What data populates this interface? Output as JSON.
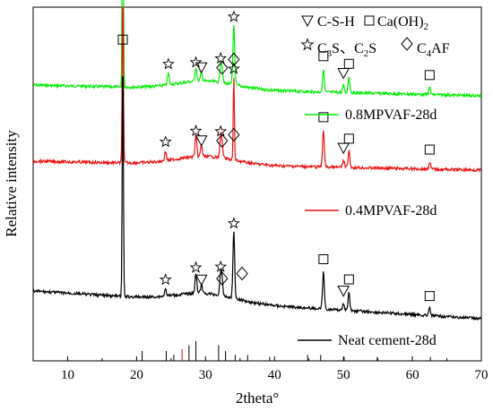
{
  "chart_data": {
    "type": "line",
    "xlabel": "2theta°",
    "ylabel": "Relative intensity",
    "xlim": [
      5,
      70
    ],
    "x_ticks": [
      10,
      20,
      30,
      40,
      50,
      60,
      70
    ],
    "grid": false,
    "legend": {
      "phase_labels": [
        {
          "symbol": "triangle-down",
          "text": "C-S-H"
        },
        {
          "symbol": "square",
          "text": "Ca(OH)2"
        },
        {
          "symbol": "star",
          "text": "C3S、C2S"
        },
        {
          "symbol": "diamond",
          "text": "C4AF"
        }
      ]
    },
    "series": [
      {
        "name": "0.8MPVAF-28d",
        "color": "#00ee00",
        "peaks": [
          {
            "x": 18.0,
            "phase": "square",
            "height": 10.5
          },
          {
            "x": 24.6,
            "phase": "star",
            "height": 0.5
          },
          {
            "x": 28.6,
            "phase": "star",
            "height": 0.6
          },
          {
            "x": 29.4,
            "phase": "triangle-down",
            "height": 0.4
          },
          {
            "x": 32.2,
            "phase": "star",
            "height": 0.8
          },
          {
            "x": 32.4,
            "phase": "diamond",
            "height": 0.4
          },
          {
            "x": 34.1,
            "phase": "star",
            "height": 2.6
          },
          {
            "x": 34.1,
            "phase": "diamond",
            "height": 0
          },
          {
            "x": 47.1,
            "phase": "square",
            "height": 1.0
          },
          {
            "x": 50.0,
            "phase": "triangle-down",
            "height": 0.3
          },
          {
            "x": 50.8,
            "phase": "square",
            "height": 0.7
          },
          {
            "x": 62.5,
            "phase": "square",
            "height": 0.3
          }
        ]
      },
      {
        "name": "0.4MPVAF-28d",
        "color": "#ee1111",
        "peaks": [
          {
            "x": 18.0,
            "phase": "square",
            "height": 7.5
          },
          {
            "x": 24.2,
            "phase": "star",
            "height": 0.4
          },
          {
            "x": 28.6,
            "phase": "star",
            "height": 0.9
          },
          {
            "x": 29.4,
            "phase": "triangle-down",
            "height": 0.5
          },
          {
            "x": 32.2,
            "phase": "star",
            "height": 0.9
          },
          {
            "x": 32.4,
            "phase": "diamond",
            "height": 0.5
          },
          {
            "x": 34.1,
            "phase": "star",
            "height": 3.6
          },
          {
            "x": 34.1,
            "phase": "diamond",
            "height": 0
          },
          {
            "x": 47.1,
            "phase": "square",
            "height": 1.6
          },
          {
            "x": 50.0,
            "phase": "triangle-down",
            "height": 0.3
          },
          {
            "x": 50.8,
            "phase": "square",
            "height": 0.7
          },
          {
            "x": 62.5,
            "phase": "square",
            "height": 0.3
          }
        ]
      },
      {
        "name": "Neat cement-28d",
        "color": "#000000",
        "peaks": [
          {
            "x": 18.0,
            "phase": "square",
            "height": 10.5
          },
          {
            "x": 24.2,
            "phase": "star",
            "height": 0.3
          },
          {
            "x": 28.6,
            "phase": "star",
            "height": 0.9
          },
          {
            "x": 29.4,
            "phase": "triangle-down",
            "height": 0.4
          },
          {
            "x": 32.2,
            "phase": "star",
            "height": 1.0
          },
          {
            "x": 32.4,
            "phase": "diamond",
            "height": 0.5
          },
          {
            "x": 34.1,
            "phase": "star",
            "height": 2.9
          },
          {
            "x": 35.3,
            "phase": "diamond",
            "height": 0
          },
          {
            "x": 47.1,
            "phase": "square",
            "height": 1.6
          },
          {
            "x": 50.0,
            "phase": "triangle-down",
            "height": 0.3
          },
          {
            "x": 50.8,
            "phase": "square",
            "height": 0.8
          },
          {
            "x": 62.5,
            "phase": "square",
            "height": 0.3
          }
        ]
      }
    ],
    "reference_sticks": [
      {
        "x": 20.8,
        "h": 0.5,
        "color": "#000000"
      },
      {
        "x": 24.3,
        "h": 0.5,
        "color": "#000000"
      },
      {
        "x": 25.4,
        "h": 0.3,
        "color": "#000000"
      },
      {
        "x": 26.6,
        "h": 0.6,
        "color": "#dd0000"
      },
      {
        "x": 27.6,
        "h": 0.8,
        "color": "#000000"
      },
      {
        "x": 28.6,
        "h": 1.0,
        "color": "#000000"
      },
      {
        "x": 31.9,
        "h": 0.8,
        "color": "#000000"
      },
      {
        "x": 32.9,
        "h": 0.5,
        "color": "#000000"
      },
      {
        "x": 34.3,
        "h": 0.3,
        "color": "#000000"
      },
      {
        "x": 36.1,
        "h": 0.3,
        "color": "#000000"
      },
      {
        "x": 39.3,
        "h": 0.2,
        "color": "#000000"
      },
      {
        "x": 44.8,
        "h": 0.3,
        "color": "#000000"
      },
      {
        "x": 46.7,
        "h": 0.3,
        "color": "#000000"
      },
      {
        "x": 50.1,
        "h": 0.2,
        "color": "#000000"
      },
      {
        "x": 54.9,
        "h": 0.2,
        "color": "#000000"
      },
      {
        "x": 60.0,
        "h": 0.2,
        "color": "#000000"
      },
      {
        "x": 62.6,
        "h": 0.2,
        "color": "#000000"
      }
    ]
  }
}
